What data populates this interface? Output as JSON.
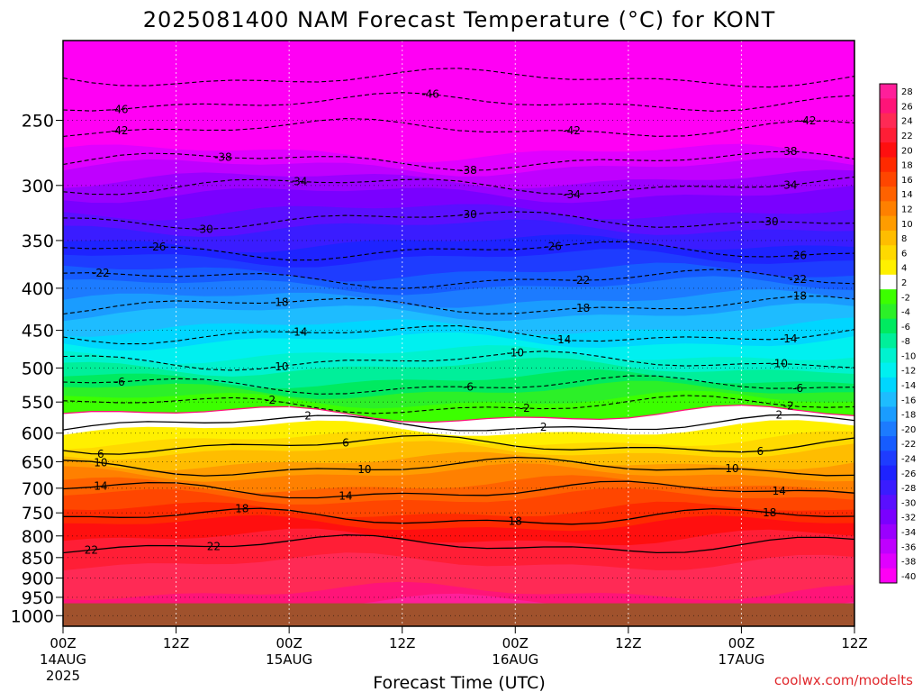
{
  "chart_data": {
    "type": "heatmap",
    "title": "2025081400 NAM Forecast Temperature (°C) for KONT",
    "xlabel": "Forecast Time (UTC)",
    "ylabel": "",
    "credit": "coolwx.com/modelts",
    "x_ticks": [
      {
        "hour": 0,
        "lines": [
          "00Z",
          "14AUG",
          "2025"
        ]
      },
      {
        "hour": 12,
        "lines": [
          "12Z"
        ]
      },
      {
        "hour": 24,
        "lines": [
          "00Z",
          "15AUG"
        ]
      },
      {
        "hour": 36,
        "lines": [
          "12Z"
        ]
      },
      {
        "hour": 48,
        "lines": [
          "00Z",
          "16AUG"
        ]
      },
      {
        "hour": 60,
        "lines": [
          "12Z"
        ]
      },
      {
        "hour": 72,
        "lines": [
          "00Z",
          "17AUG"
        ]
      },
      {
        "hour": 84,
        "lines": [
          "12Z"
        ]
      }
    ],
    "xlim_hours": [
      0,
      84
    ],
    "y_ticks_hpa": [
      250,
      300,
      350,
      400,
      450,
      500,
      550,
      600,
      650,
      700,
      750,
      800,
      850,
      900,
      950,
      1000
    ],
    "ylim_hpa": [
      200,
      1030
    ],
    "y_scale": "log",
    "surface_pressure_hpa": 966,
    "colorbar_levels": [
      28,
      26,
      24,
      22,
      20,
      18,
      16,
      14,
      12,
      10,
      8,
      6,
      4,
      2,
      -2,
      -4,
      -6,
      -8,
      -10,
      -12,
      -14,
      -16,
      -18,
      -20,
      -22,
      -24,
      -26,
      -28,
      -30,
      -32,
      -34,
      -36,
      -38,
      -40
    ],
    "colorbar_colors": [
      "#ff1f9a",
      "#ff1478",
      "#ff2a55",
      "#ff1e36",
      "#ff0f0f",
      "#ff2a00",
      "#ff4600",
      "#ff6200",
      "#ff8000",
      "#ff9c00",
      "#ffbd00",
      "#ffd900",
      "#fff000",
      "#ffffff",
      "#3cff00",
      "#2cf028",
      "#00ea60",
      "#00ef9a",
      "#00f2cf",
      "#00f0f0",
      "#00d6ff",
      "#1ebcff",
      "#1a9cff",
      "#1c7bff",
      "#165cff",
      "#1e3cff",
      "#1e23ff",
      "#3a1cff",
      "#5a0fff",
      "#7a00ff",
      "#9a00ff",
      "#bf00ff",
      "#e000ff",
      "#ff00f4"
    ],
    "temperature_profile": [
      {
        "p": 200,
        "t": -56
      },
      {
        "p": 230,
        "t": -48
      },
      {
        "p": 250,
        "t": -43
      },
      {
        "p": 280,
        "t": -38
      },
      {
        "p": 300,
        "t": -34
      },
      {
        "p": 330,
        "t": -30
      },
      {
        "p": 360,
        "t": -26
      },
      {
        "p": 390,
        "t": -22
      },
      {
        "p": 420,
        "t": -18
      },
      {
        "p": 455,
        "t": -14
      },
      {
        "p": 490,
        "t": -10
      },
      {
        "p": 525,
        "t": -6
      },
      {
        "p": 555,
        "t": -2
      },
      {
        "p": 570,
        "t": 0
      },
      {
        "p": 585,
        "t": 2
      },
      {
        "p": 620,
        "t": 6
      },
      {
        "p": 660,
        "t": 10
      },
      {
        "p": 705,
        "t": 14
      },
      {
        "p": 760,
        "t": 18
      },
      {
        "p": 820,
        "t": 22
      },
      {
        "p": 905,
        "t": 24
      },
      {
        "p": 966,
        "t": 26
      }
    ],
    "contour_labels": [
      {
        "hour": 6,
        "t": -46
      },
      {
        "hour": 39,
        "t": -46
      },
      {
        "hour": 6,
        "t": -42
      },
      {
        "hour": 54,
        "t": -42
      },
      {
        "hour": 79,
        "t": -42
      },
      {
        "hour": 17,
        "t": -38
      },
      {
        "hour": 43,
        "t": -38
      },
      {
        "hour": 77,
        "t": -38
      },
      {
        "hour": 25,
        "t": -34
      },
      {
        "hour": 54,
        "t": -34
      },
      {
        "hour": 77,
        "t": -34
      },
      {
        "hour": 15,
        "t": -30
      },
      {
        "hour": 43,
        "t": -30
      },
      {
        "hour": 75,
        "t": -30
      },
      {
        "hour": 10,
        "t": -26
      },
      {
        "hour": 52,
        "t": -26
      },
      {
        "hour": 78,
        "t": -26
      },
      {
        "hour": 4,
        "t": -22
      },
      {
        "hour": 55,
        "t": -22
      },
      {
        "hour": 78,
        "t": -22
      },
      {
        "hour": 23,
        "t": -18
      },
      {
        "hour": 55,
        "t": -18
      },
      {
        "hour": 78,
        "t": -18
      },
      {
        "hour": 25,
        "t": -14
      },
      {
        "hour": 53,
        "t": -14
      },
      {
        "hour": 77,
        "t": -14
      },
      {
        "hour": 23,
        "t": -10
      },
      {
        "hour": 48,
        "t": -10
      },
      {
        "hour": 76,
        "t": -10
      },
      {
        "hour": 6,
        "t": -6
      },
      {
        "hour": 43,
        "t": -6
      },
      {
        "hour": 78,
        "t": -6
      },
      {
        "hour": 22,
        "t": -2
      },
      {
        "hour": 49,
        "t": -2
      },
      {
        "hour": 77,
        "t": -2
      },
      {
        "hour": 26,
        "t": 2
      },
      {
        "hour": 51,
        "t": 2
      },
      {
        "hour": 76,
        "t": 2
      },
      {
        "hour": 4,
        "t": 6
      },
      {
        "hour": 30,
        "t": 6
      },
      {
        "hour": 74,
        "t": 6
      },
      {
        "hour": 4,
        "t": 10
      },
      {
        "hour": 32,
        "t": 10
      },
      {
        "hour": 71,
        "t": 10
      },
      {
        "hour": 4,
        "t": 14
      },
      {
        "hour": 30,
        "t": 14
      },
      {
        "hour": 76,
        "t": 14
      },
      {
        "hour": 19,
        "t": 18
      },
      {
        "hour": 48,
        "t": 18
      },
      {
        "hour": 75,
        "t": 18
      },
      {
        "hour": 16,
        "t": 22
      },
      {
        "hour": 3,
        "t": 22
      }
    ],
    "grid": true
  }
}
